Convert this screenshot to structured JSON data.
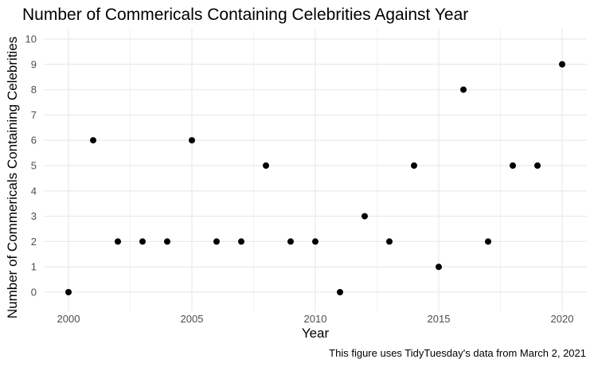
{
  "chart_data": {
    "type": "scatter",
    "title": "Number of Commericals Containing Celebrities Against Year",
    "xlabel": "Year",
    "ylabel": "Number of Commericals Containing Celebrities",
    "caption": "This figure uses TidyTuesday's data from March 2, 2021",
    "xlim": [
      2000,
      2020
    ],
    "ylim": [
      0,
      10
    ],
    "x_ticks": [
      2000,
      2005,
      2010,
      2015,
      2020
    ],
    "y_ticks": [
      0,
      1,
      2,
      3,
      4,
      5,
      6,
      7,
      8,
      9,
      10
    ],
    "grid": true,
    "theme": "minimal",
    "colors": {
      "point": "#000000",
      "grid_major": "#ebebeb",
      "grid_minor": "#f3f3f3",
      "tick_label": "#4d4d4d"
    },
    "x": [
      2000,
      2001,
      2002,
      2003,
      2004,
      2005,
      2006,
      2007,
      2008,
      2009,
      2010,
      2011,
      2012,
      2013,
      2014,
      2015,
      2016,
      2017,
      2018,
      2019,
      2020
    ],
    "y": [
      0,
      6,
      2,
      2,
      2,
      6,
      2,
      2,
      5,
      2,
      2,
      0,
      3,
      2,
      5,
      1,
      8,
      2,
      5,
      5,
      9
    ]
  }
}
